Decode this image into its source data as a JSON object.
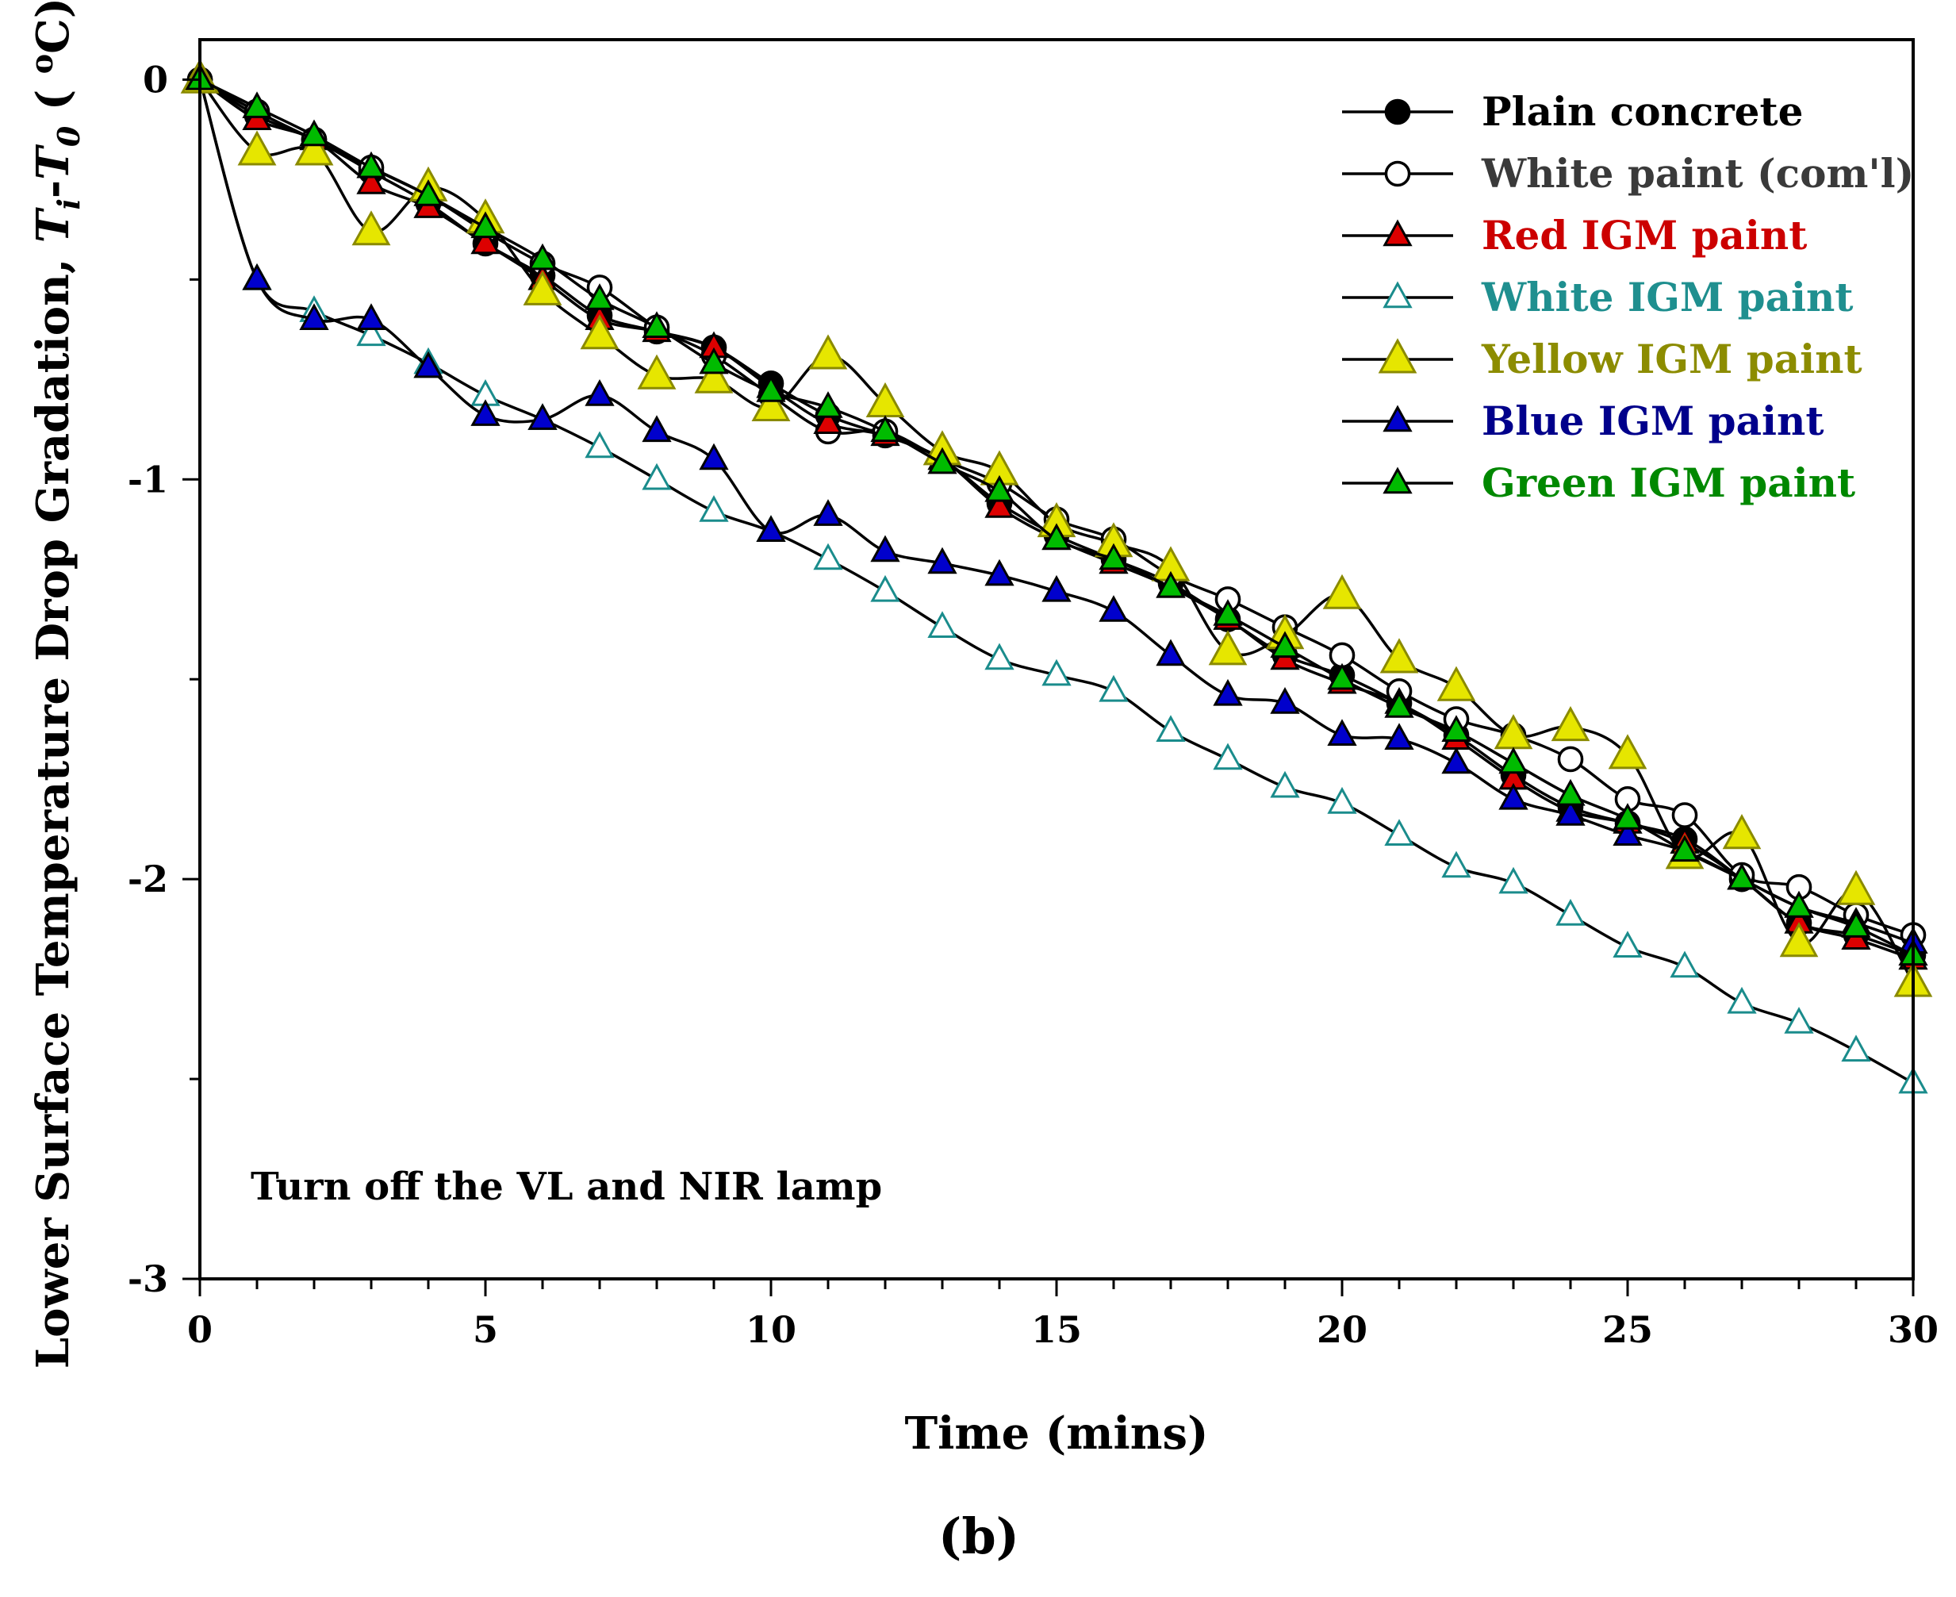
{
  "chart_data": {
    "type": "line",
    "xlabel": "Time (mins)",
    "ylabel": {
      "prefix": "Lower Surface Temperature Drop Gradation, ",
      "t1": "T",
      "sub1": "i",
      "dash": "-",
      "t2": "T",
      "sub2": "0",
      "open": " ( ",
      "sup": "o",
      "unit": "C)"
    },
    "xlim": [
      0,
      30
    ],
    "ylim": [
      -3,
      0.1
    ],
    "x_ticks": [
      0,
      5,
      10,
      15,
      20,
      25,
      30
    ],
    "y_ticks": [
      0,
      -1,
      -2,
      -3
    ],
    "x_tick_labels": [
      "0",
      "5",
      "10",
      "15",
      "20",
      "25",
      "30"
    ],
    "y_tick_labels": [
      "0",
      "-1",
      "-2",
      "-3"
    ],
    "grid": false,
    "legend_position": "top-right",
    "annotation": "Turn off the VL and NIR lamp",
    "panel_label": "(b)",
    "x": [
      0,
      1,
      2,
      3,
      4,
      5,
      6,
      7,
      8,
      9,
      10,
      11,
      12,
      13,
      14,
      15,
      16,
      17,
      18,
      19,
      20,
      21,
      22,
      23,
      24,
      25,
      26,
      27,
      28,
      29,
      30
    ],
    "series": [
      {
        "name": "Plain concrete",
        "marker": "circle",
        "fill": "#000000",
        "stroke": "#000000",
        "label_color": "#000000",
        "values": [
          0,
          -0.09,
          -0.15,
          -0.23,
          -0.31,
          -0.41,
          -0.49,
          -0.59,
          -0.63,
          -0.67,
          -0.76,
          -0.84,
          -0.89,
          -0.95,
          -1.06,
          -1.14,
          -1.2,
          -1.26,
          -1.35,
          -1.44,
          -1.49,
          -1.56,
          -1.64,
          -1.74,
          -1.82,
          -1.86,
          -1.9,
          -2.0,
          -2.11,
          -2.14,
          -2.19
        ]
      },
      {
        "name": "White paint (com'l)",
        "marker": "circle",
        "fill": "#ffffff",
        "stroke": "#000000",
        "label_color": "#3a3a3a",
        "values": [
          0,
          -0.08,
          -0.15,
          -0.22,
          -0.29,
          -0.38,
          -0.46,
          -0.52,
          -0.62,
          -0.69,
          -0.79,
          -0.88,
          -0.88,
          -0.95,
          -1.01,
          -1.1,
          -1.15,
          -1.24,
          -1.3,
          -1.37,
          -1.44,
          -1.53,
          -1.6,
          -1.64,
          -1.7,
          -1.8,
          -1.84,
          -1.99,
          -2.02,
          -2.09,
          -2.14
        ]
      },
      {
        "name": "Red IGM paint",
        "marker": "triangle",
        "fill": "#dd0000",
        "stroke": "#000000",
        "label_color": "#cc0000",
        "values": [
          0,
          -0.1,
          -0.15,
          -0.26,
          -0.32,
          -0.41,
          -0.5,
          -0.6,
          -0.63,
          -0.67,
          -0.77,
          -0.86,
          -0.89,
          -0.95,
          -1.07,
          -1.15,
          -1.21,
          -1.27,
          -1.35,
          -1.45,
          -1.51,
          -1.56,
          -1.65,
          -1.75,
          -1.83,
          -1.86,
          -1.91,
          -2.0,
          -2.11,
          -2.15,
          -2.2
        ]
      },
      {
        "name": "White IGM paint",
        "marker": "triangle",
        "fill": "#ffffff",
        "stroke": "#1a8c8c",
        "label_color": "#1f8f8f",
        "values": [
          0,
          -0.5,
          -0.58,
          -0.64,
          -0.71,
          -0.79,
          -0.85,
          -0.92,
          -1.0,
          -1.08,
          -1.13,
          -1.2,
          -1.28,
          -1.37,
          -1.45,
          -1.49,
          -1.53,
          -1.63,
          -1.7,
          -1.77,
          -1.81,
          -1.89,
          -1.97,
          -2.01,
          -2.09,
          -2.17,
          -2.22,
          -2.31,
          -2.36,
          -2.43,
          -2.51
        ]
      },
      {
        "name": "Yellow IGM paint",
        "marker": "triangle",
        "fill": "#e6e600",
        "stroke": "#8a8a00",
        "label_color": "#8c8c00",
        "values": [
          0,
          -0.18,
          -0.18,
          -0.38,
          -0.27,
          -0.35,
          -0.53,
          -0.64,
          -0.74,
          -0.75,
          -0.82,
          -0.69,
          -0.81,
          -0.93,
          -0.98,
          -1.11,
          -1.16,
          -1.22,
          -1.43,
          -1.39,
          -1.29,
          -1.45,
          -1.52,
          -1.64,
          -1.62,
          -1.69,
          -1.94,
          -1.89,
          -2.16,
          -2.03,
          -2.26
        ]
      },
      {
        "name": "Blue IGM paint",
        "marker": "triangle",
        "fill": "#0000cc",
        "stroke": "#000000",
        "label_color": "#00008b",
        "values": [
          0,
          -0.5,
          -0.6,
          -0.6,
          -0.72,
          -0.84,
          -0.85,
          -0.79,
          -0.88,
          -0.95,
          -1.13,
          -1.09,
          -1.18,
          -1.21,
          -1.24,
          -1.28,
          -1.33,
          -1.44,
          -1.54,
          -1.56,
          -1.64,
          -1.65,
          -1.71,
          -1.8,
          -1.84,
          -1.89,
          -1.93,
          -2.0,
          -2.07,
          -2.11,
          -2.16
        ]
      },
      {
        "name": "Green IGM paint",
        "marker": "triangle",
        "fill": "#00bb00",
        "stroke": "#000000",
        "label_color": "#008800",
        "values": [
          0,
          -0.07,
          -0.14,
          -0.22,
          -0.29,
          -0.37,
          -0.45,
          -0.55,
          -0.62,
          -0.71,
          -0.78,
          -0.82,
          -0.88,
          -0.96,
          -1.03,
          -1.15,
          -1.2,
          -1.27,
          -1.34,
          -1.42,
          -1.5,
          -1.57,
          -1.63,
          -1.71,
          -1.79,
          -1.85,
          -1.93,
          -2.0,
          -2.07,
          -2.12,
          -2.19
        ]
      }
    ]
  }
}
